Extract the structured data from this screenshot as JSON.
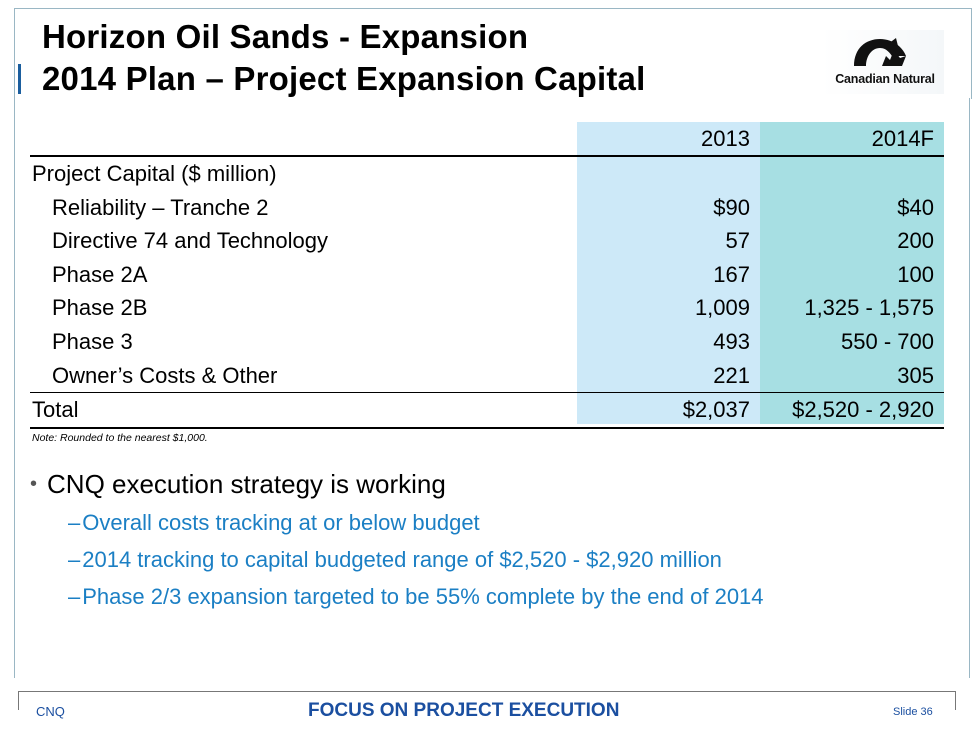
{
  "header": {
    "title_line1": "Horizon Oil Sands - Expansion",
    "title_line2": "2014 Plan – Project Expansion Capital",
    "logo_text": "Canadian Natural"
  },
  "table": {
    "columns": [
      "2013",
      "2014F"
    ],
    "section_label": "Project Capital ($ million)",
    "rows": [
      {
        "label": "Reliability – Tranche 2",
        "v2013": "$90",
        "v2014": "$40"
      },
      {
        "label": "Directive 74 and Technology",
        "v2013": "57",
        "v2014": "200"
      },
      {
        "label": "Phase 2A",
        "v2013": "167",
        "v2014": "100"
      },
      {
        "label": "Phase 2B",
        "v2013": "1,009",
        "v2014": "1,325 - 1,575"
      },
      {
        "label": "Phase 3",
        "v2013": "493",
        "v2014": "550 - 700"
      },
      {
        "label": "Owner’s Costs & Other",
        "v2013": "221",
        "v2014": "305"
      }
    ],
    "total": {
      "label": "Total",
      "v2013": "$2,037",
      "v2014": "$2,520 - 2,920"
    },
    "colors": {
      "col_2013": "#cde9f8",
      "col_2014": "#a7dfe3"
    }
  },
  "note": "Note: Rounded to the nearest $1,000.",
  "bullets": {
    "main": "CNQ execution strategy is working",
    "subs": [
      "Overall costs tracking at or below budget",
      "2014 tracking to capital budgeted range of $2,520 - $2,920 million",
      "Phase 2/3 expansion targeted to be 55% complete by the end of 2014"
    ]
  },
  "footer": {
    "left": "CNQ",
    "center": "FOCUS ON PROJECT EXECUTION",
    "right": "Slide 36"
  }
}
